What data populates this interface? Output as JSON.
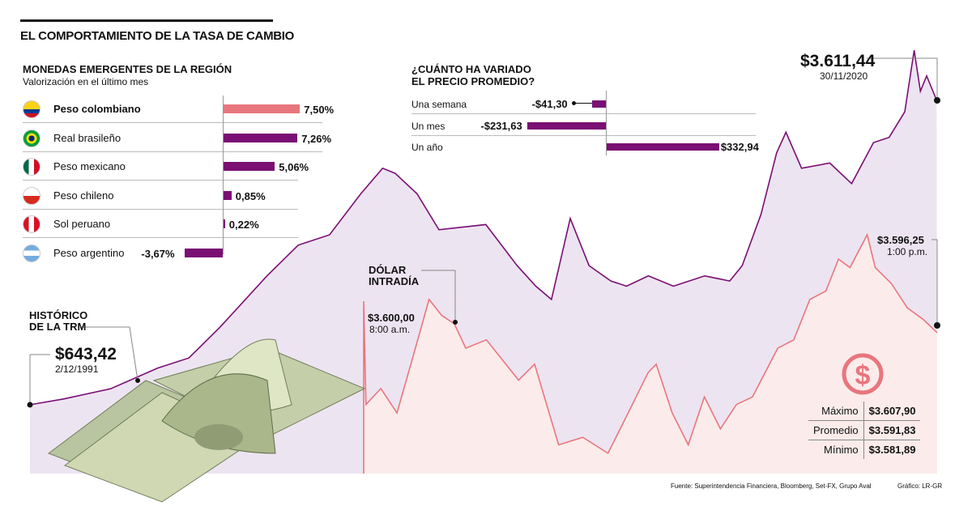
{
  "title": "EL COMPORTAMIENTO DE LA TASA DE CAMBIO",
  "colors": {
    "purple": "#7a0f74",
    "pink": "#e8767d",
    "lavender": "#ede4f1",
    "pinkbg": "#fbeceb"
  },
  "monedas": {
    "title": "MONEDAS EMERGENTES DE LA REGIÓN",
    "subtitle": "Valorización en el último mes",
    "items": [
      {
        "name": "Peso colombiano",
        "value": 7.5,
        "label": "7,50%",
        "highlight": true,
        "flag": "colombia"
      },
      {
        "name": "Real brasileño",
        "value": 7.26,
        "label": "7,26%",
        "flag": "brazil"
      },
      {
        "name": "Peso mexicano",
        "value": 5.06,
        "label": "5,06%",
        "flag": "mexico"
      },
      {
        "name": "Peso chileno",
        "value": 0.85,
        "label": "0,85%",
        "flag": "chile"
      },
      {
        "name": "Sol peruano",
        "value": 0.22,
        "label": "0,22%",
        "flag": "peru"
      },
      {
        "name": "Peso argentino",
        "value": -3.67,
        "label": "-3,67%",
        "flag": "argentina"
      }
    ]
  },
  "variacion": {
    "title1": "¿CUÁNTO HA VARIADO",
    "title2": "EL PRECIO PROMEDIO?",
    "items": [
      {
        "period": "Una semana",
        "value": -41.3,
        "label": "-$41,30"
      },
      {
        "period": "Un mes",
        "value": -231.63,
        "label": "-$231,63"
      },
      {
        "period": "Un año",
        "value": 332.94,
        "label": "$332,94"
      }
    ]
  },
  "chart_data": [
    {
      "type": "area",
      "title": "HISTÓRICO DE LA TRM",
      "title1": "HISTÓRICO",
      "title2": "DE LA TRM",
      "start": {
        "value": "$643,42",
        "date": "2/12/1991"
      },
      "end": {
        "value": "$3.611,44",
        "date": "30/11/2020"
      },
      "x": [
        1991.92,
        1993,
        1994.5,
        1996,
        1997,
        1998,
        1999.5,
        2000.5,
        2001.5,
        2002.5,
        2003.2,
        2003.6,
        2004.3,
        2005,
        2006.5,
        2007.5,
        2008.1,
        2008.6,
        2009.2,
        2009.8,
        2010.5,
        2011,
        2011.7,
        2012.5,
        2013.5,
        2014.3,
        2014.7,
        2015.3,
        2015.8,
        2016.1,
        2016.6,
        2017.5,
        2018.2,
        2018.9,
        2019.4,
        2019.9,
        2020.2,
        2020.4,
        2020.6,
        2020.92
      ],
      "y": [
        643.42,
        700,
        800,
        1000,
        1100,
        1400,
        1900,
        2200,
        2300,
        2700,
        2950,
        2900,
        2700,
        2350,
        2400,
        2000,
        1800,
        1670,
        2460,
        2000,
        1850,
        1800,
        1900,
        1800,
        1900,
        1850,
        2000,
        2500,
        3100,
        3300,
        2950,
        3000,
        2800,
        3200,
        3250,
        3500,
        4100,
        3700,
        3850,
        3611.44
      ]
    },
    {
      "type": "line",
      "title": "DÓLAR INTRADÍA",
      "title1": "DÓLAR",
      "title2": "INTRADÍA",
      "start": {
        "value": "$3.600,00",
        "time": "8:00 a.m."
      },
      "end": {
        "value": "$3.596,25",
        "time": "1:00 p.m."
      },
      "x_hours": [
        8.0,
        8.02,
        8.15,
        8.29,
        8.43,
        8.57,
        8.68,
        8.79,
        8.89,
        9.07,
        9.35,
        9.49,
        9.7,
        9.91,
        10.13,
        10.27,
        10.48,
        10.55,
        10.69,
        10.83,
        10.97,
        11.11,
        11.25,
        11.39,
        11.61,
        11.75,
        11.89,
        12.03,
        12.14,
        12.24,
        12.39,
        12.46,
        12.6,
        12.74,
        12.88,
        13.0
      ],
      "y": [
        3600.0,
        3587.7,
        3589.6,
        3586.7,
        3593.4,
        3600.2,
        3598.3,
        3597.3,
        3594.4,
        3595.4,
        3590.6,
        3592.5,
        3582.9,
        3583.8,
        3581.9,
        3585.7,
        3591.5,
        3592.5,
        3586.7,
        3582.9,
        3588.6,
        3584.8,
        3587.7,
        3588.6,
        3594.4,
        3595.4,
        3600.2,
        3601.2,
        3605.0,
        3604.0,
        3607.9,
        3604.0,
        3602.1,
        3599.2,
        3597.8,
        3596.25
      ],
      "stats": [
        {
          "label": "Máximo",
          "value": "$3.607,90"
        },
        {
          "label": "Promedio",
          "value": "$3.591,83"
        },
        {
          "label": "Mínimo",
          "value": "$3.581,89"
        }
      ]
    }
  ],
  "footer": {
    "source": "Fuente: Superintendencia Financiera, Bloomberg, Set-FX, Grupo Aval",
    "credit": "Gráfico: LR-GR"
  }
}
